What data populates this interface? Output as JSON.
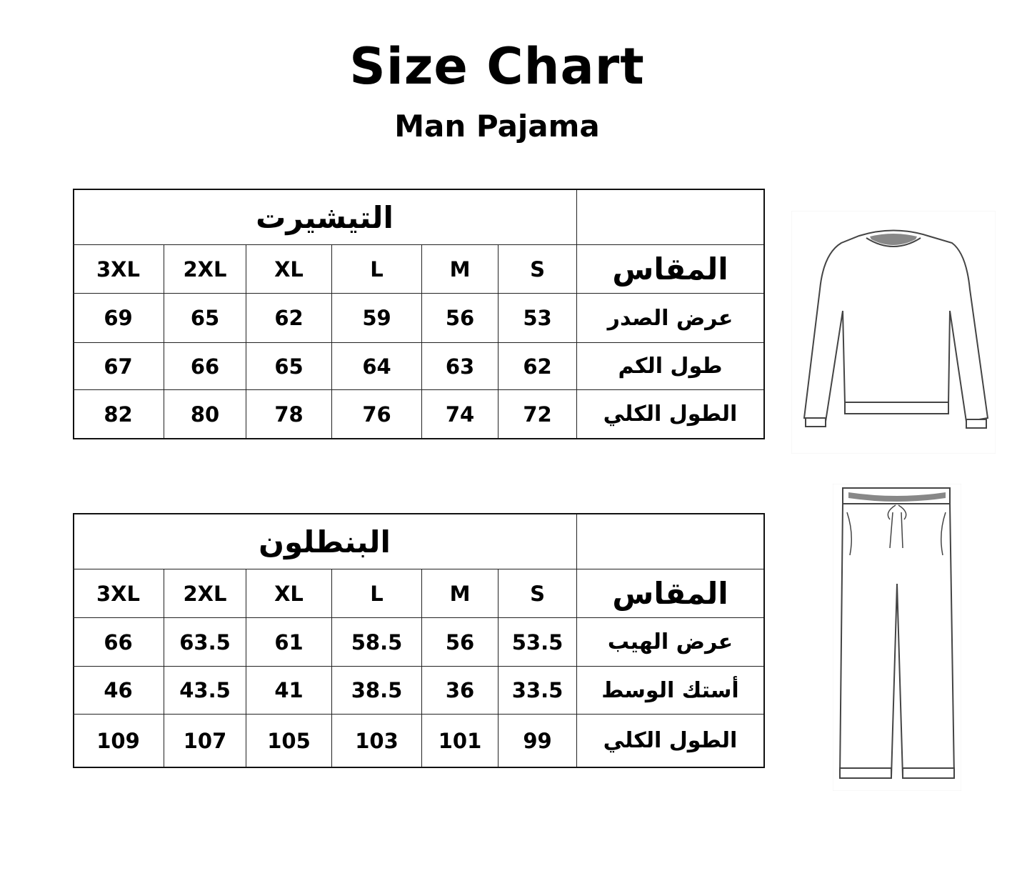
{
  "title": "Size Chart",
  "subtitle": "Man Pajama",
  "tables": [
    {
      "heading": "التيشيرت",
      "size_label": "المقاس",
      "sizes": [
        "S",
        "M",
        "L",
        "XL",
        "2XL",
        "3XL"
      ],
      "rows": [
        {
          "label": "عرض الصدر",
          "values": [
            "53",
            "56",
            "59",
            "62",
            "65",
            "69"
          ]
        },
        {
          "label": "طول الكم",
          "values": [
            "62",
            "63",
            "64",
            "65",
            "66",
            "67"
          ]
        },
        {
          "label": "الطول الكلي",
          "values": [
            "72",
            "74",
            "76",
            "78",
            "80",
            "82"
          ]
        }
      ]
    },
    {
      "heading": "البنطلون",
      "size_label": "المقاس",
      "sizes": [
        "S",
        "M",
        "L",
        "XL",
        "2XL",
        "3XL"
      ],
      "rows": [
        {
          "label": "عرض الهيب",
          "values": [
            "53.5",
            "56",
            "58.5",
            "61",
            "63.5",
            "66"
          ]
        },
        {
          "label": "أستك الوسط",
          "values": [
            "33.5",
            "36",
            "38.5",
            "41",
            "43.5",
            "46"
          ]
        },
        {
          "label": "الطول الكلي",
          "values": [
            "99",
            "101",
            "103",
            "105",
            "107",
            "109"
          ]
        }
      ]
    }
  ],
  "illustrations": [
    "sweatshirt-icon",
    "pants-icon"
  ]
}
